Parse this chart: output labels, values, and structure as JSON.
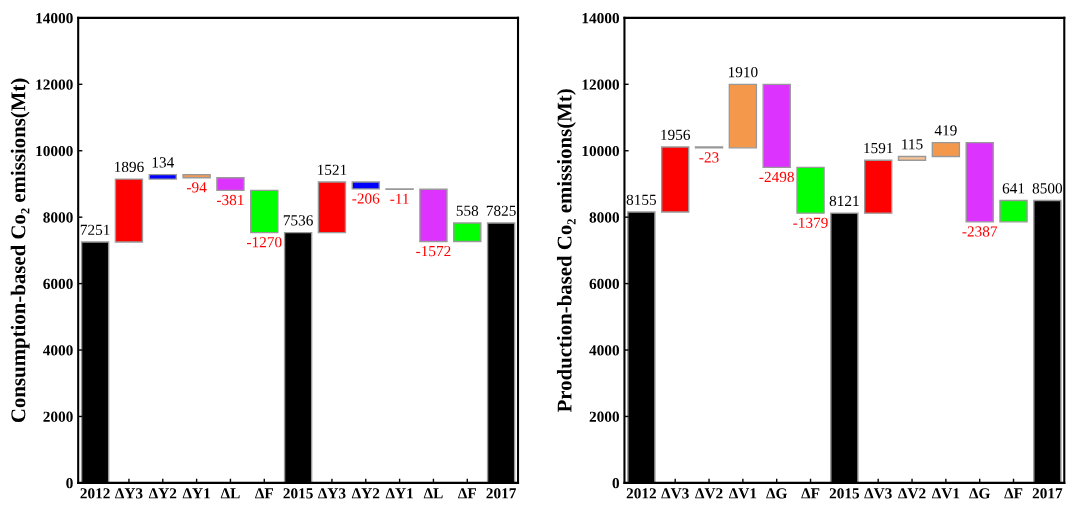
{
  "chart_data": [
    {
      "type": "bar",
      "ylabel": "Consumption-based Co₂ emissions(Mt)",
      "categories": [
        "2012",
        "ΔY3",
        "ΔY2",
        "ΔY1",
        "ΔL",
        "ΔF",
        "2015",
        "ΔY3",
        "ΔY2",
        "ΔY1",
        "ΔL",
        "ΔF",
        "2017"
      ],
      "values": [
        7251,
        1896,
        134,
        -94,
        -381,
        -1270,
        7536,
        1521,
        -206,
        -11,
        -1572,
        558,
        7825
      ],
      "base": [
        0,
        7251,
        9147,
        9281,
        9187,
        8806,
        0,
        7536,
        9057,
        8851,
        8840,
        7268,
        0
      ],
      "colors": [
        "#000000",
        "#ff0000",
        "#0000ff",
        "#f09a5a",
        "#dd33ff",
        "#00ff00",
        "#000000",
        "#ff0000",
        "#0000ff",
        "#c8c8c8",
        "#dd33ff",
        "#00ff00",
        "#000000"
      ],
      "data_labels": true,
      "ylim": [
        0,
        14000
      ],
      "yticks": [
        0,
        2000,
        4000,
        6000,
        8000,
        10000,
        12000,
        14000
      ],
      "grid": false,
      "legend": false
    },
    {
      "type": "bar",
      "ylabel": "Production-based Co₂ emissions(Mt)",
      "categories": [
        "2012",
        "ΔV3",
        "ΔV2",
        "ΔV1",
        "ΔG",
        "ΔF",
        "2015",
        "ΔV3",
        "ΔV2",
        "ΔV1",
        "ΔG",
        "ΔF",
        "2017"
      ],
      "values": [
        8155,
        1956,
        -23,
        1910,
        -2498,
        -1379,
        8121,
        1591,
        115,
        419,
        -2387,
        641,
        8500
      ],
      "base": [
        0,
        8155,
        10111,
        10088,
        11998,
        9500,
        0,
        8121,
        9712,
        9827,
        10246,
        7859,
        0
      ],
      "colors": [
        "#000000",
        "#ff0000",
        "#c8c8c8",
        "#f4994c",
        "#dd33ff",
        "#00ff00",
        "#000000",
        "#ff0000",
        "#f8c496",
        "#f4994c",
        "#dd33ff",
        "#00ff00",
        "#000000"
      ],
      "data_labels": true,
      "ylim": [
        0,
        14000
      ],
      "yticks": [
        0,
        2000,
        4000,
        6000,
        8000,
        10000,
        12000,
        14000
      ],
      "grid": false,
      "legend": false
    }
  ]
}
